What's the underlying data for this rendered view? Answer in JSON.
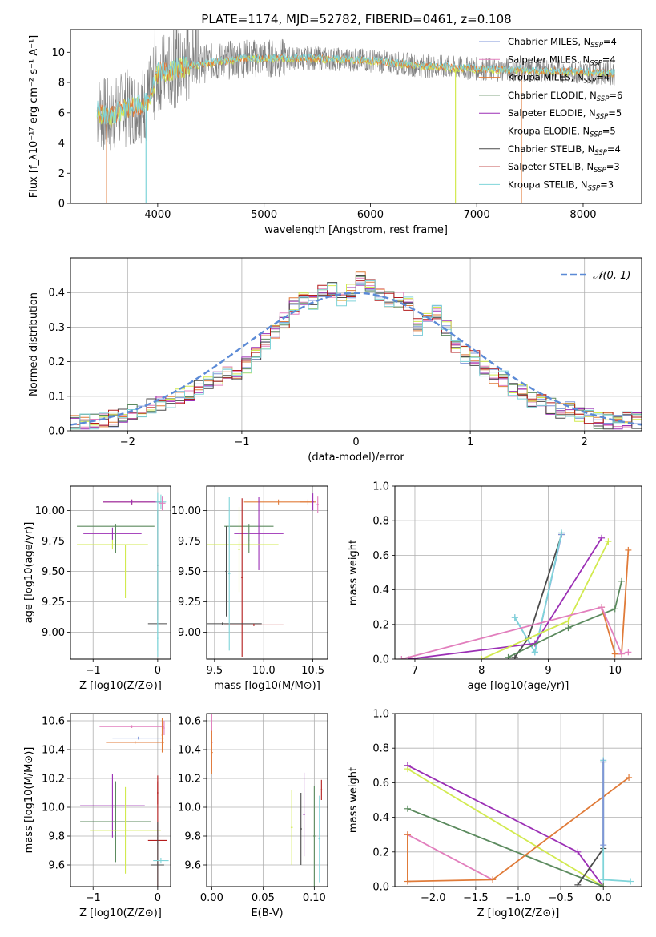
{
  "figure_title": "PLATE=1174, MJD=52782, FIBERID=0461, z=0.108",
  "colors": {
    "chabrier_miles": "#7f96d9",
    "salpeter_miles": "#e27fbd",
    "kroupa_miles": "#e07b39",
    "chabrier_elodie": "#5b8a5e",
    "salpeter_elodie": "#9b2fb5",
    "kroupa_elodie": "#d2ea4f",
    "chabrier_stelib": "#4a4a4a",
    "salpeter_stelib": "#b31c1c",
    "kroupa_stelib": "#7fd4d9",
    "spectrum": "#808080",
    "normal_curve": "#5b8ad6",
    "grid": "#b0b0b0"
  },
  "chart_data": [
    {
      "id": "spectrum",
      "type": "line",
      "title": "PLATE=1174, MJD=52782, FIBERID=0461, z=0.108",
      "xlabel": "wavelength [Angstrom, rest frame]",
      "ylabel": "Flux [f_λ10⁻¹⁷ erg cm⁻² s⁻¹ A⁻¹]",
      "xlim": [
        3180,
        8550
      ],
      "ylim": [
        0,
        11.5
      ],
      "xticks": [
        "4000",
        "5000",
        "6000",
        "7000",
        "8000"
      ],
      "yticks": [
        "0",
        "2",
        "4",
        "6",
        "8",
        "10"
      ],
      "grid": false,
      "legend_position": "right",
      "legend": [
        "Chabrier MILES, N_SSP=4",
        "Salpeter MILES, N_SSP=4",
        "Kroupa MILES, N_SSP=4",
        "Chabrier ELODIE, N_SSP=6",
        "Salpeter ELODIE, N_SSP=5",
        "Kroupa ELODIE, N_SSP=5",
        "Chabrier STELIB, N_SSP=4",
        "Salpeter STELIB, N_SSP=3",
        "Kroupa STELIB, N_SSP=3"
      ],
      "continuum": [
        [
          3430,
          6.1
        ],
        [
          3550,
          5.7
        ],
        [
          3700,
          6.3
        ],
        [
          3900,
          6.6
        ],
        [
          4000,
          8.6
        ],
        [
          4100,
          8.8
        ],
        [
          4300,
          9.1
        ],
        [
          4500,
          9.3
        ],
        [
          4800,
          9.6
        ],
        [
          5000,
          9.6
        ],
        [
          5500,
          9.6
        ],
        [
          6000,
          9.45
        ],
        [
          6500,
          9.1
        ],
        [
          7000,
          8.9
        ],
        [
          7500,
          8.8
        ],
        [
          8000,
          8.7
        ],
        [
          8300,
          8.6
        ]
      ]
    },
    {
      "id": "residual-hist",
      "type": "line",
      "xlabel": "(data-model)/error",
      "ylabel": "Normed distribution",
      "xlim": [
        -2.5,
        2.5
      ],
      "ylim": [
        0,
        0.5
      ],
      "xticks": [
        "−2",
        "−1",
        "0",
        "1",
        "2"
      ],
      "yticks": [
        "0.0",
        "0.1",
        "0.2",
        "0.3",
        "0.4"
      ],
      "grid": true,
      "legend": [
        "𝒩(0, 1)"
      ],
      "legend_position": "top-right",
      "bin_width": 0.1,
      "base_hist": [
        0.02,
        0.025,
        0.03,
        0.03,
        0.035,
        0.045,
        0.055,
        0.06,
        0.07,
        0.08,
        0.09,
        0.1,
        0.11,
        0.125,
        0.14,
        0.15,
        0.165,
        0.17,
        0.19,
        0.22,
        0.26,
        0.29,
        0.32,
        0.36,
        0.38,
        0.37,
        0.41,
        0.41,
        0.38,
        0.4,
        0.44,
        0.42,
        0.39,
        0.38,
        0.38,
        0.37,
        0.3,
        0.32,
        0.34,
        0.3,
        0.25,
        0.22,
        0.21,
        0.18,
        0.16,
        0.15,
        0.12,
        0.11,
        0.09,
        0.08,
        0.07,
        0.06,
        0.06,
        0.05,
        0.04,
        0.03,
        0.03,
        0.025,
        0.03,
        0.03
      ]
    },
    {
      "id": "age-vs-Z",
      "type": "scatter",
      "xlabel": "Z [log10(Z/Z⊙)]",
      "ylabel": "age  [log10(age/yr)]",
      "xlim": [
        -1.35,
        0.2
      ],
      "ylim": [
        8.78,
        10.2
      ],
      "xticks": [
        "−1",
        "0"
      ],
      "yticks": [
        "9.00",
        "9.25",
        "9.50",
        "9.75",
        "10.00"
      ],
      "grid": true
    },
    {
      "id": "age-vs-mass",
      "type": "scatter",
      "xlabel": "mass [log10(M/M⊙)]",
      "ylabel": "",
      "xlim": [
        9.42,
        10.65
      ],
      "ylim": [
        8.78,
        10.2
      ],
      "xticks": [
        "9.5",
        "10.0",
        "10.5"
      ],
      "yticks": [
        "9.00",
        "9.25",
        "9.50",
        "9.75",
        "10.00"
      ],
      "grid": true
    },
    {
      "id": "mass-weight-vs-age",
      "type": "line",
      "xlabel": "age  [log10(age/yr)]",
      "ylabel": "mass weight",
      "xlim": [
        6.7,
        10.4
      ],
      "ylim": [
        0,
        1.0
      ],
      "xticks": [
        "7",
        "8",
        "9",
        "10"
      ],
      "yticks": [
        "0.0",
        "0.2",
        "0.4",
        "0.6",
        "0.8",
        "1.0"
      ],
      "grid": true,
      "series": [
        {
          "color_key": "chabrier_stelib",
          "x": [
            8.5,
            8.7,
            9.2
          ],
          "y": [
            0.01,
            0.12,
            0.72
          ]
        },
        {
          "color_key": "chabrier_miles",
          "x": [
            8.5,
            8.8,
            9.2
          ],
          "y": [
            0.24,
            0.04,
            0.72
          ]
        },
        {
          "color_key": "kroupa_stelib",
          "x": [
            8.5,
            8.8,
            9.2
          ],
          "y": [
            0.24,
            0.04,
            0.73
          ]
        },
        {
          "color_key": "salpeter_elodie",
          "x": [
            6.9,
            8.8,
            9.8
          ],
          "y": [
            0.0,
            0.09,
            0.7
          ]
        },
        {
          "color_key": "kroupa_elodie",
          "x": [
            8.0,
            9.3,
            9.9
          ],
          "y": [
            0.0,
            0.22,
            0.68
          ]
        },
        {
          "color_key": "chabrier_elodie",
          "x": [
            8.4,
            9.3,
            10.0,
            10.1
          ],
          "y": [
            0.01,
            0.18,
            0.29,
            0.45
          ]
        },
        {
          "color_key": "kroupa_miles",
          "x": [
            9.8,
            10.0,
            10.1,
            10.2
          ],
          "y": [
            0.3,
            0.03,
            0.03,
            0.63
          ]
        },
        {
          "color_key": "salpeter_miles",
          "x": [
            6.8,
            9.8,
            10.1,
            10.2
          ],
          "y": [
            0.0,
            0.3,
            0.03,
            0.04
          ]
        }
      ]
    },
    {
      "id": "mass-vs-Z",
      "type": "scatter",
      "xlabel": "Z [log10(Z/Z⊙)]",
      "ylabel": "mass [log10(M/M⊙)]",
      "xlim": [
        -1.35,
        0.2
      ],
      "ylim": [
        9.45,
        10.65
      ],
      "xticks": [
        "−1",
        "0"
      ],
      "yticks": [
        "9.6",
        "9.8",
        "10.0",
        "10.2",
        "10.4",
        "10.6"
      ],
      "grid": true
    },
    {
      "id": "mass-vs-ebv",
      "type": "scatter",
      "xlabel": "E(B-V)",
      "ylabel": "",
      "xlim": [
        -0.005,
        0.113
      ],
      "ylim": [
        9.45,
        10.65
      ],
      "xticks": [
        "0.00",
        "0.05",
        "0.10"
      ],
      "yticks": [
        "9.6",
        "9.8",
        "10.0",
        "10.2",
        "10.4",
        "10.6"
      ],
      "grid": true
    },
    {
      "id": "mass-weight-vs-Z",
      "type": "line",
      "xlabel": "Z [log10(Z/Z⊙)]",
      "ylabel": "mass weight",
      "xlim": [
        -2.45,
        0.45
      ],
      "ylim": [
        0,
        1.0
      ],
      "xticks": [
        "−2.0",
        "−1.5",
        "−1.0",
        "−0.5",
        "0.0"
      ],
      "yticks": [
        "0.0",
        "0.2",
        "0.4",
        "0.6",
        "0.8",
        "1.0"
      ],
      "grid": true,
      "series": [
        {
          "color_key": "salpeter_elodie",
          "x": [
            -2.3,
            -0.3,
            0.0
          ],
          "y": [
            0.7,
            0.2,
            0.0
          ]
        },
        {
          "color_key": "kroupa_elodie",
          "x": [
            -2.3,
            0.0
          ],
          "y": [
            0.68,
            0.0
          ]
        },
        {
          "color_key": "chabrier_elodie",
          "x": [
            -2.3,
            0.0
          ],
          "y": [
            0.45,
            0.0
          ]
        },
        {
          "color_key": "salpeter_miles",
          "x": [
            -2.3,
            -1.3
          ],
          "y": [
            0.3,
            0.04
          ]
        },
        {
          "color_key": "kroupa_miles",
          "x": [
            -2.3,
            -2.3,
            -1.3,
            0.3
          ],
          "y": [
            0.3,
            0.03,
            0.04,
            0.63
          ]
        },
        {
          "color_key": "chabrier_stelib",
          "x": [
            -0.3,
            0.0,
            0.0
          ],
          "y": [
            0.01,
            0.22,
            0.72
          ]
        },
        {
          "color_key": "kroupa_stelib",
          "x": [
            0.0,
            0.0,
            0.32
          ],
          "y": [
            0.73,
            0.04,
            0.03
          ]
        },
        {
          "color_key": "chabrier_miles",
          "x": [
            0.0,
            0.0
          ],
          "y": [
            0.24,
            0.72
          ]
        }
      ]
    }
  ]
}
